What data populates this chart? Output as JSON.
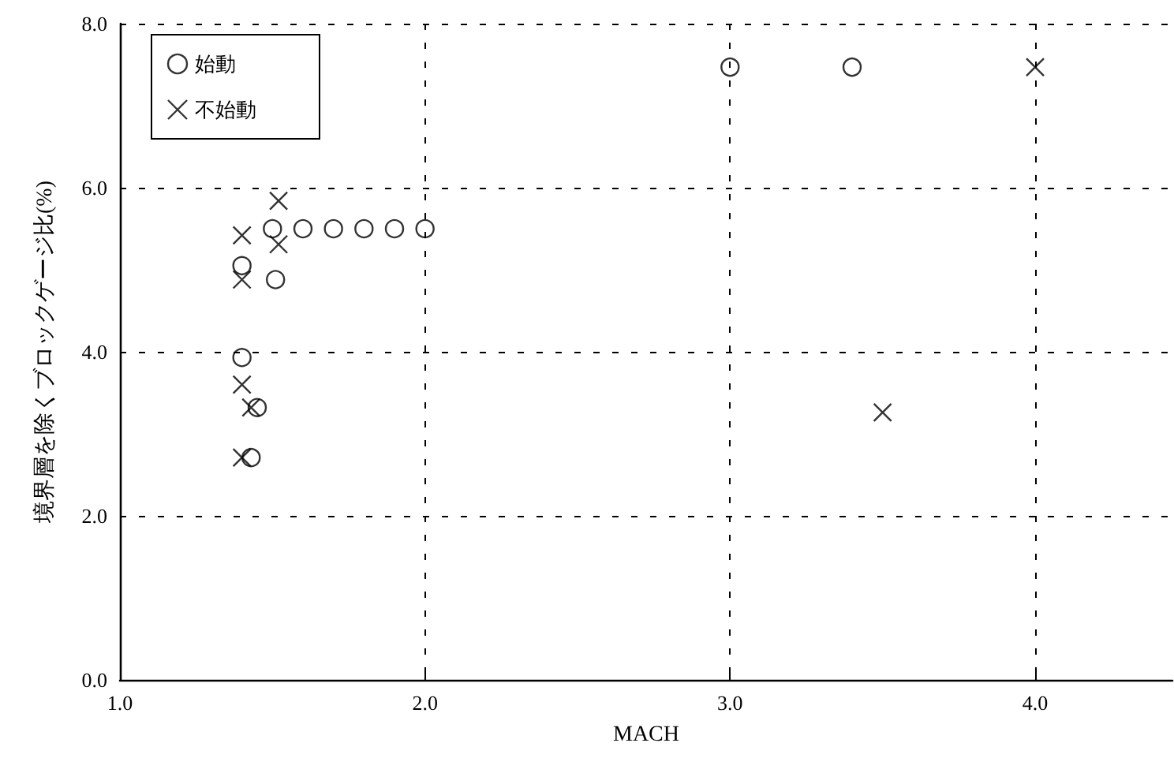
{
  "chart_data": {
    "type": "scatter",
    "xlabel": "MACH",
    "ylabel": "境界層を除くブロックゲージ比(%)",
    "xlim": [
      1.0,
      4.45
    ],
    "ylim": [
      0.0,
      8.0
    ],
    "xticks": [
      {
        "value": 1,
        "label": "1.0"
      },
      {
        "value": 2,
        "label": "2.0"
      },
      {
        "value": 3,
        "label": "3.0"
      },
      {
        "value": 4,
        "label": "4.0"
      }
    ],
    "yticks": [
      {
        "value": 0,
        "label": "0.0"
      },
      {
        "value": 2,
        "label": "2.0"
      },
      {
        "value": 4,
        "label": "4.0"
      },
      {
        "value": 6,
        "label": "6.0"
      },
      {
        "value": 8,
        "label": "8.0"
      }
    ],
    "grid": true,
    "legend": "top left",
    "series": [
      {
        "name": "始動",
        "color": "#000000",
        "marker": "circle",
        "x": [
          1.5,
          1.6,
          1.7,
          1.8,
          1.9,
          2.0,
          1.4,
          1.51,
          1.4,
          1.45,
          1.43,
          3.0,
          3.4
        ],
        "values": [
          5.5,
          5.5,
          5.5,
          5.5,
          5.5,
          5.5,
          5.05,
          4.88,
          3.93,
          3.32,
          2.71,
          7.47,
          7.47
        ]
      },
      {
        "name": "不始動",
        "color": "#000000",
        "marker": "cross",
        "x": [
          1.52,
          1.4,
          1.52,
          1.4,
          1.4,
          1.43,
          1.4,
          4.0,
          3.5
        ],
        "values": [
          5.84,
          5.42,
          5.31,
          4.88,
          3.6,
          3.32,
          2.71,
          7.47,
          3.26
        ]
      }
    ]
  }
}
